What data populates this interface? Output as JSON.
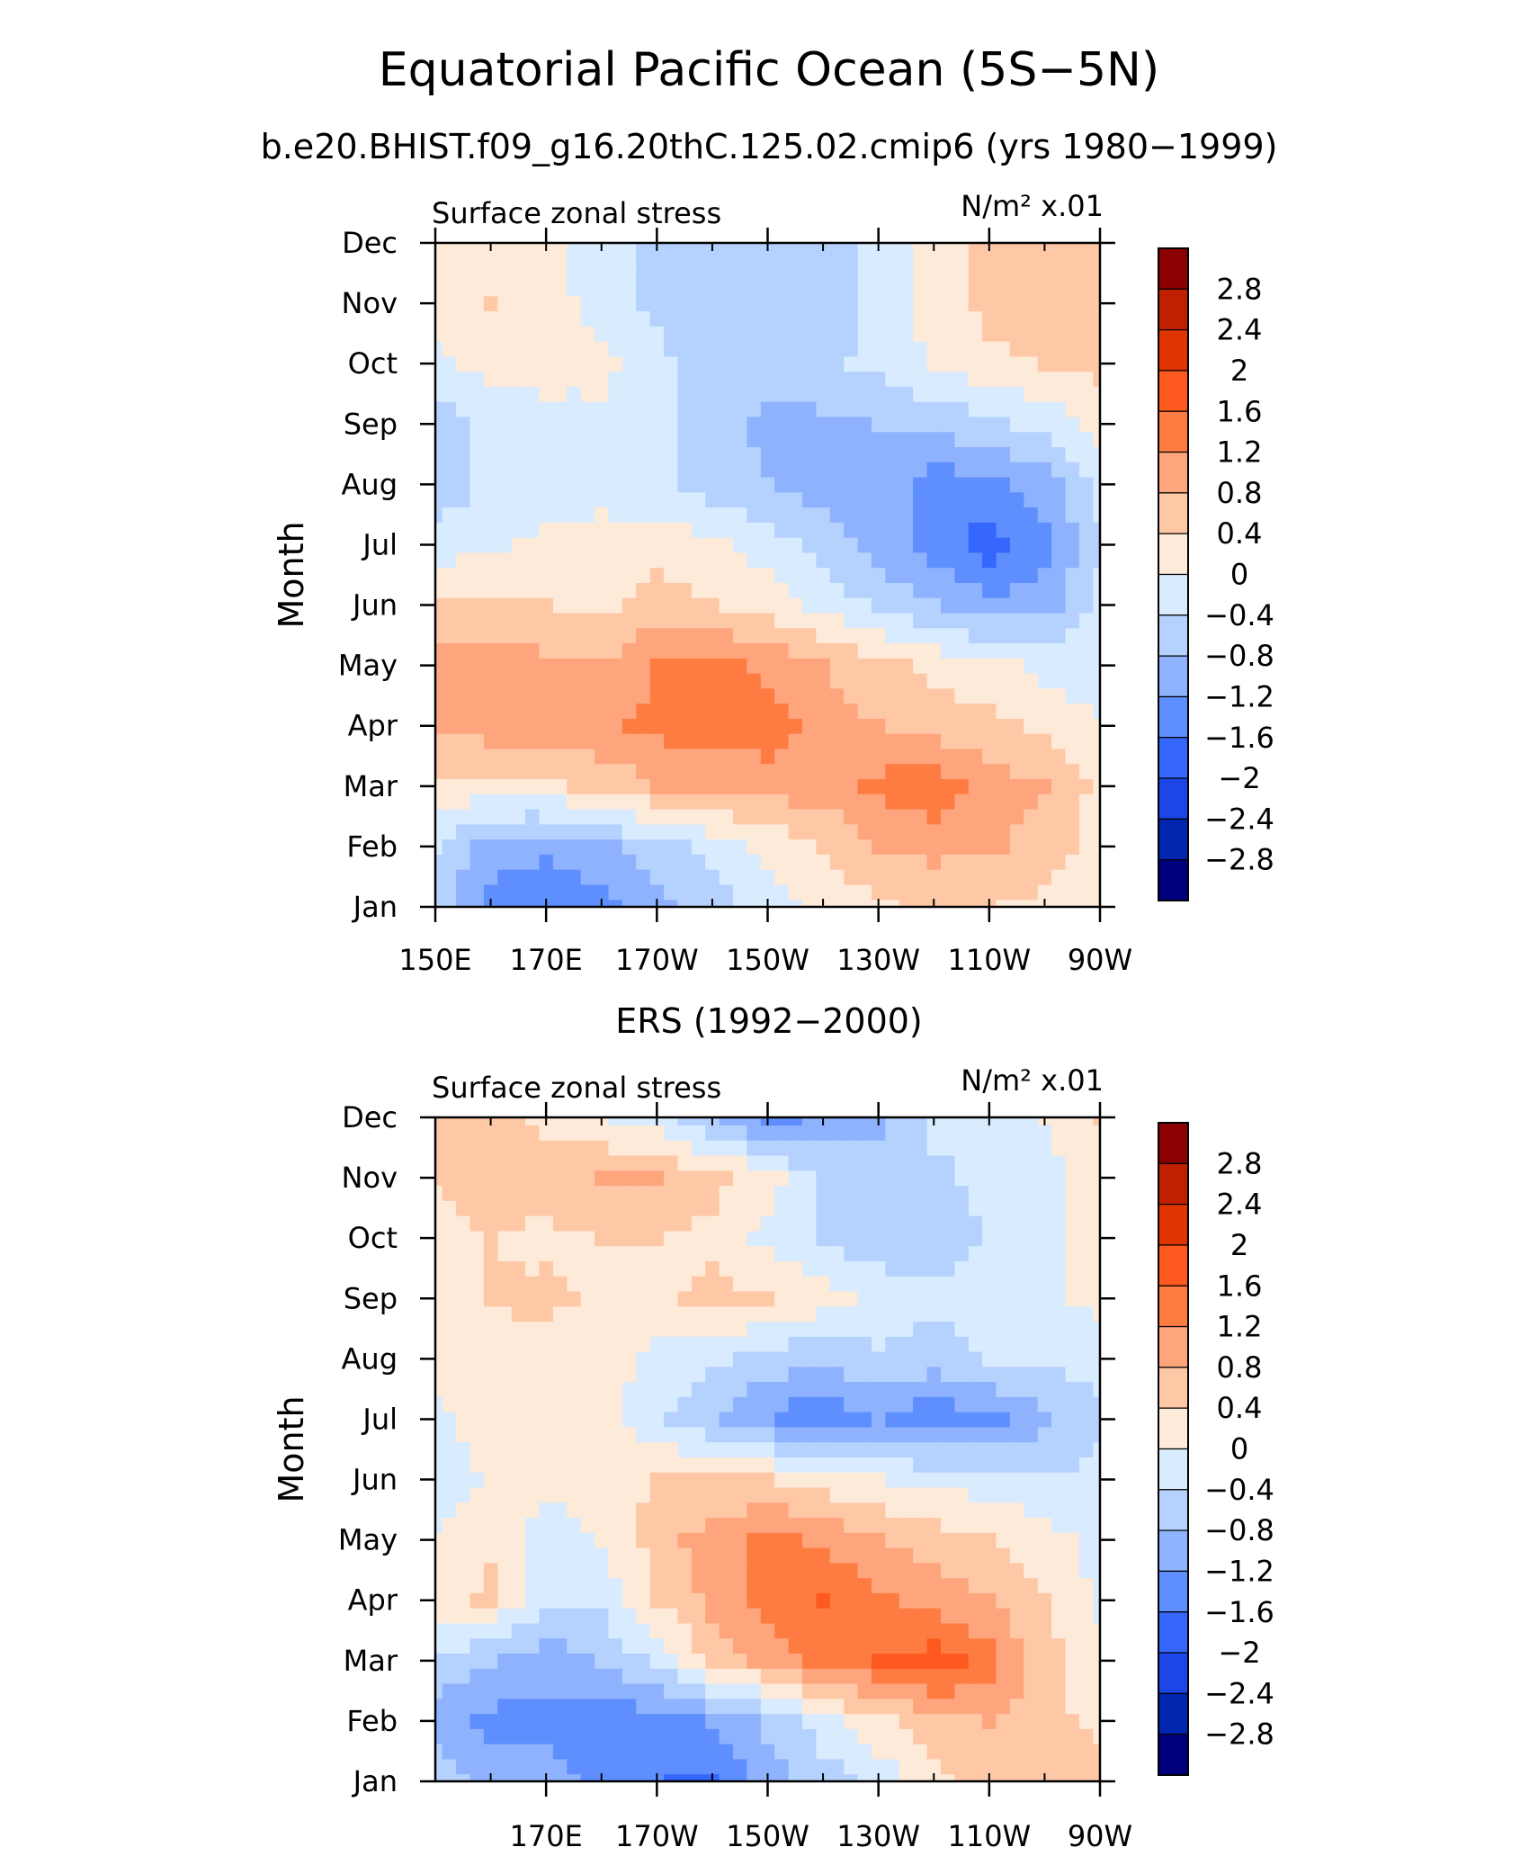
{
  "main_title": "Equatorial Pacific Ocean (5S−5N)",
  "subtitle": "b.e20.BHIST.f09_g16.20thC.125.02.cmip6 (yrs 1980−1999)",
  "colorbar": {
    "labels": [
      "2.8",
      "2.4",
      "2",
      "1.6",
      "1.2",
      "0.8",
      "0.4",
      "0",
      "−0.4",
      "−0.8",
      "−1.2",
      "−1.6",
      "−2",
      "−2.4",
      "−2.8"
    ],
    "colors": [
      "#8b0000",
      "#c02000",
      "#e03500",
      "#fe5a1f",
      "#fe7c42",
      "#fea57d",
      "#fec8a7",
      "#feead8",
      "#d9ebfe",
      "#b5d1fe",
      "#8eb2fe",
      "#5f8ffe",
      "#3566fe",
      "#1c46e8",
      "#0026b0",
      "#00007f"
    ]
  },
  "chart_data": [
    {
      "type": "heatmap",
      "title": "",
      "panel_title": "",
      "left_label": "Surface zonal stress",
      "right_label": "N/m² x.01",
      "ylabel": "Month",
      "xlabel": "",
      "x_ticks": [
        "150E",
        "170E",
        "170W",
        "150W",
        "130W",
        "110W",
        "90W"
      ],
      "y_ticks": [
        "Jan",
        "Feb",
        "Mar",
        "Apr",
        "May",
        "Jun",
        "Jul",
        "Aug",
        "Sep",
        "Oct",
        "Nov",
        "Dec"
      ],
      "x_range": [
        "150E",
        "90W"
      ],
      "y_range": [
        "Jan",
        "Dec"
      ],
      "levels": [
        -2.8,
        -2.4,
        -2,
        -1.6,
        -1.2,
        -0.8,
        -0.4,
        0,
        0.4,
        0.8,
        1.2,
        1.6,
        2,
        2.4,
        2.8
      ],
      "months": [
        "Jan",
        "Feb",
        "Mar",
        "Apr",
        "May",
        "Jun",
        "Jul",
        "Aug",
        "Sep",
        "Oct",
        "Nov",
        "Dec"
      ],
      "longitudes": [
        "150E",
        "160E",
        "170E",
        "180",
        "170W",
        "160W",
        "150W",
        "140W",
        "130W",
        "120W",
        "110W",
        "100W",
        "90W"
      ],
      "values": [
        [
          -0.5,
          -1.4,
          -1.6,
          -1.3,
          -0.9,
          -0.6,
          -0.2,
          0.1,
          0.3,
          0.5,
          0.4,
          0.3,
          0.1
        ],
        [
          -0.4,
          -1.0,
          -1.1,
          -0.9,
          -0.6,
          -0.3,
          0.1,
          0.4,
          0.8,
          0.9,
          0.9,
          0.6,
          0.2
        ],
        [
          0.3,
          0.2,
          0.3,
          0.5,
          0.8,
          0.9,
          1.0,
          1.0,
          1.3,
          1.5,
          1.0,
          0.8,
          0.3
        ],
        [
          0.9,
          1.0,
          1.0,
          1.1,
          1.3,
          1.4,
          1.4,
          1.0,
          0.8,
          0.6,
          0.5,
          0.3,
          0.0
        ],
        [
          0.9,
          1.0,
          0.9,
          0.8,
          1.2,
          1.3,
          1.1,
          0.8,
          0.5,
          0.3,
          0.1,
          -0.1,
          -0.2
        ],
        [
          0.5,
          0.5,
          0.4,
          0.3,
          0.6,
          0.4,
          0.2,
          -0.1,
          -0.5,
          -0.8,
          -1.1,
          -1.0,
          -0.3
        ],
        [
          -0.2,
          -0.1,
          0.1,
          0.2,
          0.2,
          0.1,
          -0.2,
          -0.6,
          -1.0,
          -1.4,
          -1.8,
          -1.4,
          -0.5
        ],
        [
          -0.7,
          -0.3,
          -0.2,
          -0.2,
          -0.3,
          -0.6,
          -0.8,
          -1.0,
          -1.0,
          -1.4,
          -1.4,
          -1.0,
          -0.3
        ],
        [
          -0.6,
          -0.3,
          -0.2,
          -0.1,
          -0.3,
          -0.7,
          -0.9,
          -0.9,
          -0.8,
          -0.7,
          -0.5,
          -0.3,
          0.2
        ],
        [
          -0.1,
          0.1,
          0.2,
          0.1,
          -0.3,
          -0.6,
          -0.6,
          -0.5,
          -0.3,
          0.0,
          0.3,
          0.4,
          0.5
        ],
        [
          0.3,
          0.4,
          0.2,
          -0.2,
          -0.5,
          -0.7,
          -0.7,
          -0.6,
          -0.3,
          0.2,
          0.5,
          0.6,
          0.5
        ],
        [
          0.2,
          0.3,
          0.1,
          -0.2,
          -0.5,
          -0.7,
          -0.7,
          -0.6,
          -0.3,
          0.1,
          0.5,
          0.6,
          0.5
        ]
      ]
    },
    {
      "type": "heatmap",
      "title": "",
      "panel_title": "ERS (1992−2000)",
      "left_label": "Surface zonal stress",
      "right_label": "N/m² x.01",
      "ylabel": "Month",
      "xlabel": "",
      "x_ticks": [
        "170E",
        "170W",
        "150W",
        "130W",
        "110W",
        "90W"
      ],
      "y_ticks": [
        "Jan",
        "Feb",
        "Mar",
        "Apr",
        "May",
        "Jun",
        "Jul",
        "Aug",
        "Sep",
        "Oct",
        "Nov",
        "Dec"
      ],
      "x_range": [
        "150E",
        "90W"
      ],
      "y_range": [
        "Jan",
        "Dec"
      ],
      "levels": [
        -2.8,
        -2.4,
        -2,
        -1.6,
        -1.2,
        -0.8,
        -0.4,
        0,
        0.4,
        0.8,
        1.2,
        1.6,
        2,
        2.4,
        2.8
      ],
      "months": [
        "Jan",
        "Feb",
        "Mar",
        "Apr",
        "May",
        "Jun",
        "Jul",
        "Aug",
        "Sep",
        "Oct",
        "Nov",
        "Dec"
      ],
      "longitudes": [
        "150E",
        "160E",
        "170E",
        "180",
        "170W",
        "160W",
        "150W",
        "140W",
        "130W",
        "120W",
        "110W",
        "100W",
        "90W"
      ],
      "values": [
        [
          -0.6,
          -0.9,
          -1.0,
          -1.4,
          -1.6,
          -1.7,
          -1.0,
          -0.6,
          -0.3,
          0.3,
          0.5,
          0.6,
          0.6
        ],
        [
          -1.0,
          -1.3,
          -1.4,
          -1.5,
          -1.4,
          -1.2,
          -0.7,
          -0.2,
          0.3,
          0.7,
          0.8,
          0.5,
          0.3
        ],
        [
          -0.5,
          -0.8,
          -1.0,
          -0.8,
          -0.3,
          0.5,
          0.9,
          1.3,
          1.6,
          1.8,
          1.4,
          0.6,
          0.1
        ],
        [
          0.2,
          0.5,
          -0.4,
          -0.3,
          0.4,
          0.9,
          1.4,
          1.6,
          1.3,
          1.0,
          0.8,
          0.4,
          -0.1
        ],
        [
          0.1,
          0.3,
          -0.2,
          0.0,
          0.6,
          1.0,
          1.3,
          1.1,
          0.8,
          0.6,
          0.4,
          0.2,
          -0.1
        ],
        [
          -0.4,
          0.1,
          0.1,
          0.3,
          0.4,
          0.5,
          0.4,
          0.2,
          0.0,
          -0.1,
          -0.2,
          -0.4,
          -0.3
        ],
        [
          -0.1,
          0.2,
          0.3,
          0.1,
          -0.3,
          -0.8,
          -1.2,
          -1.6,
          -1.2,
          -1.5,
          -1.3,
          -0.9,
          -0.5
        ],
        [
          0.1,
          0.3,
          0.2,
          0.2,
          -0.1,
          -0.3,
          -0.6,
          -0.7,
          -0.5,
          -0.6,
          -0.4,
          -0.3,
          -0.2
        ],
        [
          0.3,
          0.4,
          0.5,
          0.3,
          0.3,
          0.5,
          0.4,
          0.2,
          -0.1,
          -0.3,
          -0.2,
          -0.1,
          0.1
        ],
        [
          0.3,
          0.4,
          0.3,
          0.4,
          0.4,
          0.3,
          -0.1,
          -0.5,
          -0.7,
          -0.6,
          -0.4,
          -0.2,
          0.2
        ],
        [
          0.4,
          0.5,
          0.6,
          0.8,
          0.8,
          0.5,
          0.2,
          -0.5,
          -0.7,
          -0.5,
          -0.3,
          -0.2,
          0.3
        ],
        [
          0.5,
          0.6,
          0.3,
          0.0,
          -0.2,
          -0.8,
          -1.3,
          -1.1,
          -0.9,
          -0.3,
          -0.2,
          0.0,
          0.4
        ]
      ]
    }
  ]
}
